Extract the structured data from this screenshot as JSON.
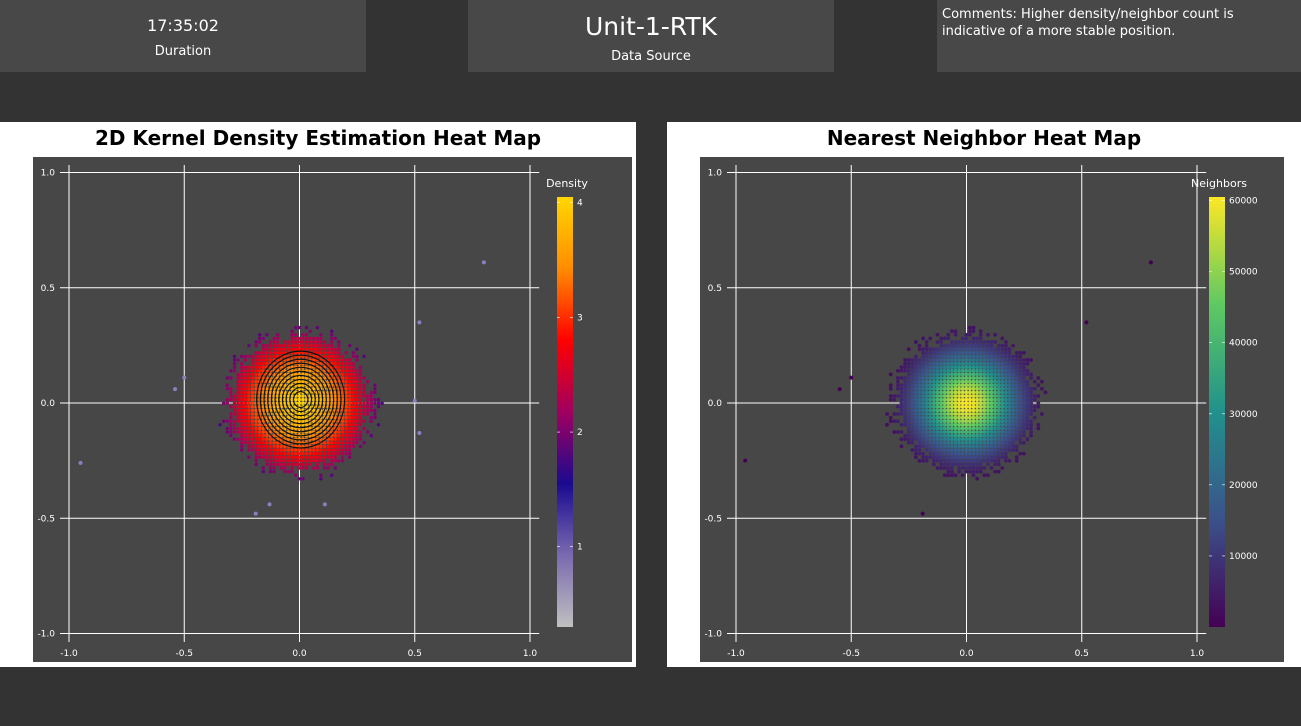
{
  "header": {
    "duration": {
      "value": "17:35:02",
      "label": "Duration"
    },
    "source": {
      "value": "Unit-1-RTK",
      "label": "Data Source"
    },
    "comments": "Comments: Higher density/neighbor count is indicative of a more stable position."
  },
  "chart_data": [
    {
      "type": "heatmap",
      "title": "2D Kernel Density Estimation Heat Map",
      "legend_title": "Density",
      "legend_ticks": [
        "1",
        "2",
        "3",
        "4"
      ],
      "legend_range": [
        0.3,
        4.05
      ],
      "xlim": [
        -1.0,
        1.0
      ],
      "ylim": [
        -1.0,
        1.0
      ],
      "x_ticks": [
        "-1.0",
        "-0.5",
        "0.0",
        "0.5",
        "1.0"
      ],
      "y_ticks": [
        "-1.0",
        "-0.5",
        "0.0",
        "0.5",
        "1.0"
      ],
      "grid": true,
      "center": [
        0.0,
        0.0
      ],
      "peak": 4.0,
      "spread_sd": 0.28,
      "contours": 11,
      "colors": [
        "#c0c0c0",
        "#7a6ab0",
        "#1a0a90",
        "#a00060",
        "#ff0000",
        "#ff8c00",
        "#ffd700"
      ],
      "outliers": [
        [
          -0.95,
          -0.26
        ],
        [
          0.8,
          0.61
        ],
        [
          -0.54,
          0.06
        ],
        [
          -0.5,
          0.11
        ],
        [
          0.52,
          0.35
        ],
        [
          -0.19,
          -0.48
        ],
        [
          -0.13,
          -0.44
        ],
        [
          0.11,
          -0.44
        ],
        [
          0.52,
          -0.13
        ],
        [
          0.5,
          0.01
        ]
      ]
    },
    {
      "type": "heatmap",
      "title": "Nearest Neighbor Heat Map",
      "legend_title": "Neighbors",
      "legend_ticks": [
        "10000",
        "20000",
        "30000",
        "40000",
        "50000",
        "60000"
      ],
      "legend_range": [
        0,
        60500
      ],
      "xlim": [
        -1.0,
        1.0
      ],
      "ylim": [
        -1.0,
        1.0
      ],
      "x_ticks": [
        "-1.0",
        "-0.5",
        "0.0",
        "0.5",
        "1.0"
      ],
      "y_ticks": [
        "-1.0",
        "-0.5",
        "0.0",
        "0.5",
        "1.0"
      ],
      "grid": true,
      "center": [
        0.0,
        0.0
      ],
      "peak": 60000,
      "spread_sd": 0.14,
      "colors": [
        "#440154",
        "#3b528b",
        "#21918c",
        "#5ec962",
        "#fde725"
      ],
      "outliers": [
        [
          -0.96,
          -0.25
        ],
        [
          0.8,
          0.61
        ],
        [
          -0.55,
          0.06
        ],
        [
          -0.5,
          0.11
        ],
        [
          0.52,
          0.35
        ],
        [
          -0.19,
          -0.48
        ]
      ]
    }
  ]
}
